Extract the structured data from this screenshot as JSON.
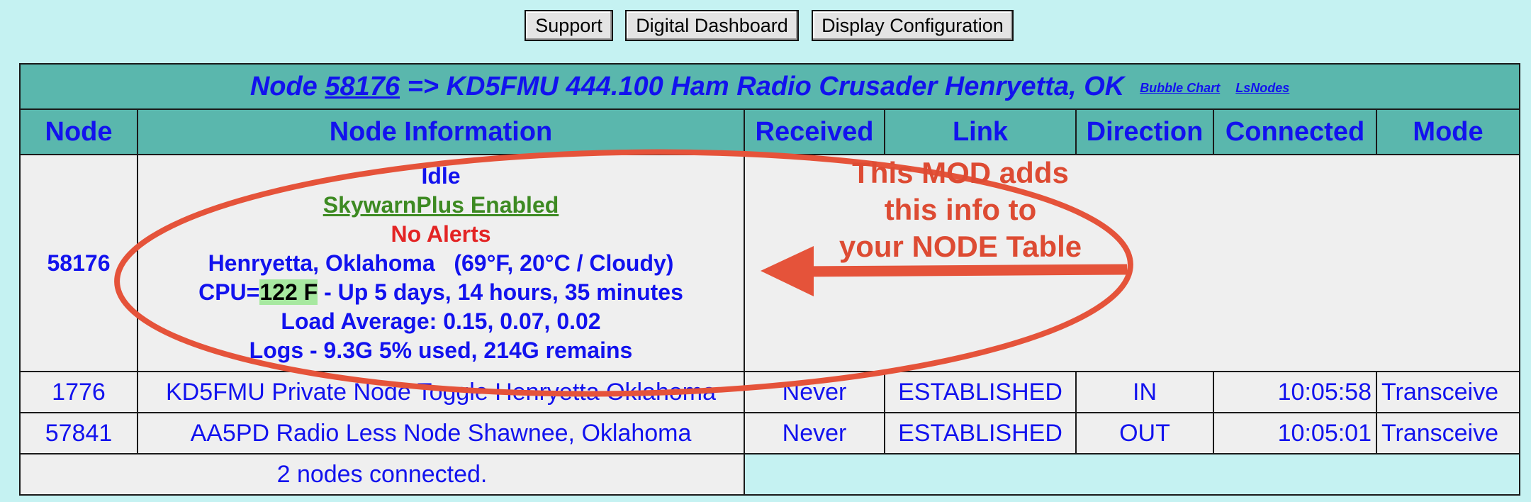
{
  "nav": {
    "support": "Support",
    "digital_dashboard": "Digital Dashboard",
    "display_configuration": "Display Configuration"
  },
  "title": {
    "prefix": "Node ",
    "node_number": "58176",
    "suffix": " => KD5FMU 444.100 Ham Radio Crusader Henryetta, OK",
    "bubble_chart": "Bubble Chart",
    "lsnodes": "LsNodes"
  },
  "headers": {
    "node": "Node",
    "node_information": "Node Information",
    "received": "Received",
    "link": "Link",
    "direction": "Direction",
    "connected": "Connected",
    "mode": "Mode"
  },
  "main_node": {
    "number": "58176",
    "status": "Idle",
    "skywarn": "SkywarnPlus Enabled",
    "alerts": "No Alerts",
    "weather": "Henryetta, Oklahoma   (69°F, 20°C / Cloudy)",
    "cpu_prefix": "CPU=",
    "cpu_temp": "122 F",
    "cpu_suffix": " - Up 5 days, 14 hours, 35 minutes",
    "load_average": "Load Average: 0.15, 0.07, 0.02",
    "logs": "Logs - 9.3G 5% used, 214G remains"
  },
  "rows": [
    {
      "node": "1776",
      "info": "KD5FMU Private Node Toggle Henryetta Oklahoma",
      "received": "Never",
      "link": "ESTABLISHED",
      "direction": "IN",
      "connected": "10:05:58",
      "mode": "Transceive"
    },
    {
      "node": "57841",
      "info": "AA5PD Radio Less Node Shawnee, Oklahoma",
      "received": "Never",
      "link": "ESTABLISHED",
      "direction": "OUT",
      "connected": "10:05:01",
      "mode": "Transceive"
    }
  ],
  "footer": {
    "nodes_connected": "2 nodes connected."
  },
  "annotation": {
    "line1": "This MOD adds",
    "line2": "this info to",
    "line3": "your NODE Table"
  },
  "colors": {
    "background": "#c5f2f2",
    "header_bg": "#5ab7ad",
    "link_blue": "#1212ee",
    "skywarn_green": "#3d8a22",
    "alert_red": "#e32424",
    "annotation_red": "#dd4b33",
    "cpu_highlight": "#a7e8a0"
  }
}
